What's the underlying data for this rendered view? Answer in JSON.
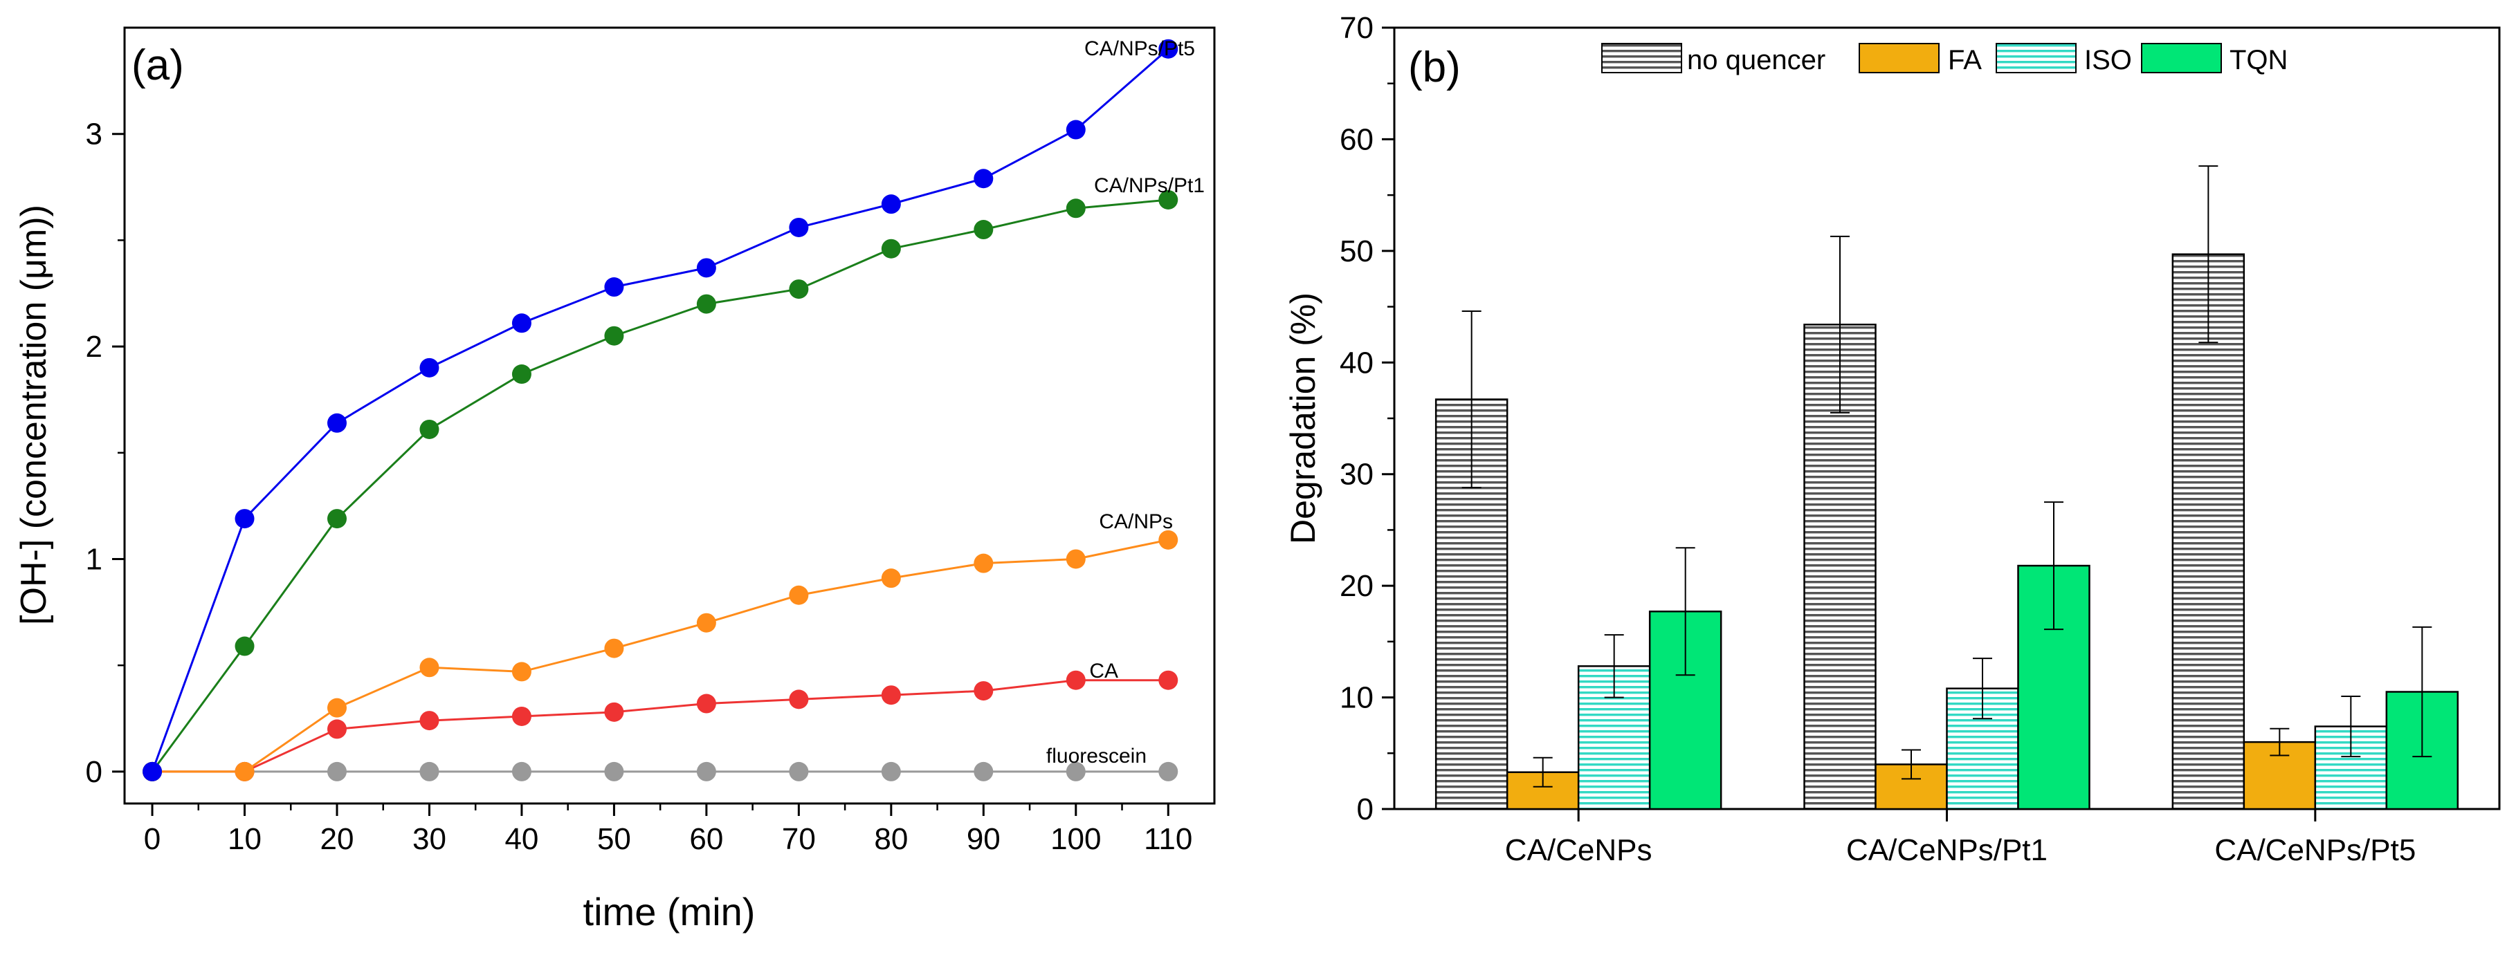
{
  "panel_a": {
    "label": "(a)",
    "series_labels": [
      "CA/NPs/Pt5",
      "CA/NPs/Pt1",
      "CA/NPs",
      "CA",
      "fluorescein"
    ]
  },
  "panel_b": {
    "label": "(b)",
    "legend": [
      "no quencer",
      "FA",
      "ISO",
      "TQN"
    ]
  },
  "colors": {
    "pt5": "#0000ee",
    "pt1": "#1a7f1a",
    "nps": "#ff8c1a",
    "ca": "#ee3333",
    "fluorescein": "#999999",
    "fa": "#f2ad0f",
    "iso": "#33d9c4",
    "tqn": "#00e676"
  },
  "chart_data": [
    {
      "type": "line",
      "title": "",
      "xlabel": "time (min)",
      "ylabel": "[OH-] (concentration (μm))",
      "xlim": [
        -3,
        115
      ],
      "ylim": [
        -0.15,
        3.5
      ],
      "xticks": [
        0,
        10,
        20,
        30,
        40,
        50,
        60,
        70,
        80,
        90,
        100,
        110
      ],
      "yticks": [
        0,
        1,
        2,
        3
      ],
      "x": [
        0,
        10,
        20,
        30,
        40,
        50,
        60,
        70,
        80,
        90,
        100,
        110
      ],
      "series": [
        {
          "name": "CA/NPs/Pt5",
          "color_key": "pt5",
          "values": [
            0,
            1.19,
            1.64,
            1.9,
            2.11,
            2.28,
            2.37,
            2.56,
            2.67,
            2.79,
            3.02,
            3.4
          ]
        },
        {
          "name": "CA/NPs/Pt1",
          "color_key": "pt1",
          "values": [
            0,
            0.59,
            1.19,
            1.61,
            1.87,
            2.05,
            2.2,
            2.27,
            2.46,
            2.55,
            2.65,
            2.69
          ]
        },
        {
          "name": "CA/NPs",
          "color_key": "nps",
          "values": [
            0,
            0,
            0.3,
            0.49,
            0.47,
            0.58,
            0.7,
            0.83,
            0.91,
            0.98,
            1.0,
            1.09
          ]
        },
        {
          "name": "CA",
          "color_key": "ca",
          "values": [
            0,
            0,
            0.2,
            0.24,
            0.26,
            0.28,
            0.32,
            0.34,
            0.36,
            0.38,
            0.43,
            0.43
          ]
        },
        {
          "name": "fluorescein",
          "color_key": "fluorescein",
          "values": [
            0,
            0,
            0,
            0,
            0,
            0,
            0,
            0,
            0,
            0,
            0,
            0
          ]
        }
      ]
    },
    {
      "type": "bar",
      "title": "",
      "xlabel": "",
      "ylabel": "Degradation (%)",
      "ylim": [
        0,
        70
      ],
      "yticks": [
        0,
        10,
        20,
        30,
        40,
        50,
        60,
        70
      ],
      "categories": [
        "CA/CeNPs",
        "CA/CeNPs/Pt1",
        "CA/CeNPs/Pt5"
      ],
      "series": [
        {
          "name": "no quencer",
          "values": [
            36.7,
            43.4,
            49.7
          ],
          "errors": [
            7.9,
            7.9,
            7.9
          ]
        },
        {
          "name": "FA",
          "values": [
            3.3,
            4.0,
            6.0
          ],
          "errors": [
            1.3,
            1.3,
            1.2
          ]
        },
        {
          "name": "ISO",
          "values": [
            12.8,
            10.8,
            7.4
          ],
          "errors": [
            2.8,
            2.7,
            2.7
          ]
        },
        {
          "name": "TQN",
          "values": [
            17.7,
            21.8,
            10.5
          ],
          "errors": [
            5.7,
            5.7,
            5.8
          ]
        }
      ]
    }
  ]
}
